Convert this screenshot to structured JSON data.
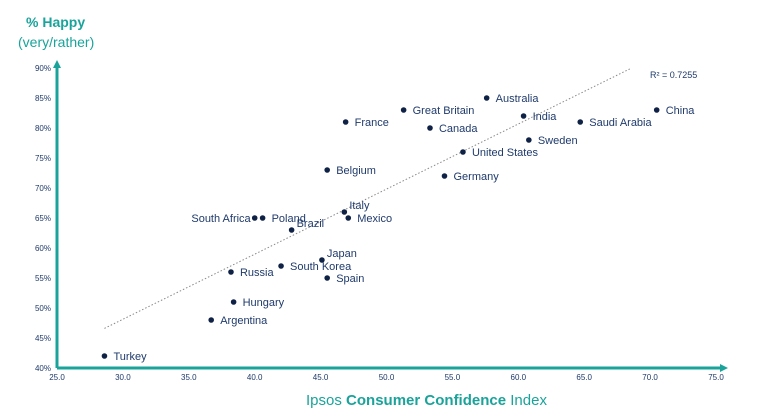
{
  "colors": {
    "axis": "#1aa39a",
    "point": "#0f2246",
    "text": "#1f3a6b",
    "trend": "#888888"
  },
  "y_title": {
    "line1": "% Happy",
    "line2": "(very/rather)"
  },
  "x_title": {
    "pre": "Ipsos ",
    "bold1": "Consumer",
    "mid": " ",
    "bold2": "Confidence",
    "post": " Index"
  },
  "chart_data": {
    "type": "scatter",
    "title": "",
    "xlabel": "Ipsos Consumer Confidence Index",
    "ylabel": "% Happy (very/rather)",
    "xlim": [
      25,
      75
    ],
    "ylim": [
      40,
      90
    ],
    "x_ticks": [
      "25.0",
      "30.0",
      "35.0",
      "40.0",
      "45.0",
      "50.0",
      "55.0",
      "60.0",
      "65.0",
      "70.0",
      "75.0"
    ],
    "y_ticks": [
      "40%",
      "45%",
      "50%",
      "55%",
      "60%",
      "65%",
      "70%",
      "75%",
      "80%",
      "85%",
      "90%"
    ],
    "r_squared_label": "R² = 0.7255",
    "trendline": {
      "x": [
        28.6,
        68.6
      ],
      "y": [
        46.6,
        90.0
      ]
    },
    "points": [
      {
        "label": "Turkey",
        "x": 28.6,
        "y": 42
      },
      {
        "label": "Argentina",
        "x": 36.7,
        "y": 48
      },
      {
        "label": "Hungary",
        "x": 38.4,
        "y": 51
      },
      {
        "label": "Russia",
        "x": 38.2,
        "y": 56
      },
      {
        "label": "South Korea",
        "x": 42.0,
        "y": 57
      },
      {
        "label": "Japan",
        "x": 45.1,
        "y": 58
      },
      {
        "label": "Spain",
        "x": 45.5,
        "y": 55
      },
      {
        "label": "Brazil",
        "x": 42.8,
        "y": 63
      },
      {
        "label": "South Africa",
        "x": 40.0,
        "y": 65
      },
      {
        "label": "Poland",
        "x": 40.6,
        "y": 65
      },
      {
        "label": "Italy",
        "x": 46.8,
        "y": 66
      },
      {
        "label": "Mexico",
        "x": 47.1,
        "y": 65
      },
      {
        "label": "Belgium",
        "x": 45.5,
        "y": 73
      },
      {
        "label": "France",
        "x": 46.9,
        "y": 81
      },
      {
        "label": "Great Britain",
        "x": 51.3,
        "y": 83
      },
      {
        "label": "Canada",
        "x": 53.3,
        "y": 80
      },
      {
        "label": "Germany",
        "x": 54.4,
        "y": 72
      },
      {
        "label": "United States",
        "x": 55.8,
        "y": 76
      },
      {
        "label": "Australia",
        "x": 57.6,
        "y": 85
      },
      {
        "label": "India",
        "x": 60.4,
        "y": 82
      },
      {
        "label": "Sweden",
        "x": 60.8,
        "y": 78
      },
      {
        "label": "Saudi Arabia",
        "x": 64.7,
        "y": 81
      },
      {
        "label": "China",
        "x": 70.5,
        "y": 83
      }
    ]
  }
}
